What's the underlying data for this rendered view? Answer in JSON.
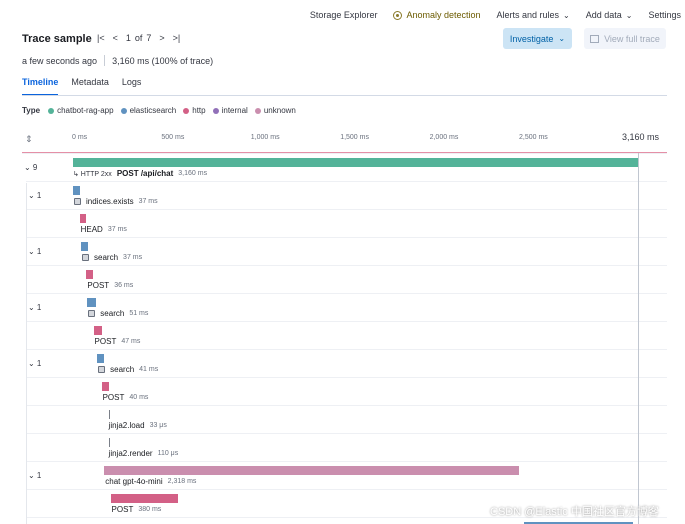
{
  "topnav": {
    "items": [
      {
        "label": "Storage Explorer"
      },
      {
        "label": "Anomaly detection"
      },
      {
        "label": "Alerts and rules"
      },
      {
        "label": "Add data"
      },
      {
        "label": "Settings"
      }
    ]
  },
  "header": {
    "title": "Trace sample",
    "pager_current": "1",
    "pager_of": "of",
    "pager_total": "7",
    "investigate_label": "Investigate",
    "view_full_trace_label": "View full trace"
  },
  "meta": {
    "time_ago": "a few seconds ago",
    "duration_summary": "3,160 ms  (100% of trace)"
  },
  "tabs": [
    {
      "label": "Timeline",
      "active": true
    },
    {
      "label": "Metadata"
    },
    {
      "label": "Logs"
    }
  ],
  "legend": {
    "title": "Type",
    "items": [
      {
        "label": "chatbot-rag-app",
        "color": "#54b399"
      },
      {
        "label": "elasticsearch",
        "color": "#6092c0"
      },
      {
        "label": "http",
        "color": "#d36086"
      },
      {
        "label": "internal",
        "color": "#9170b8"
      },
      {
        "label": "unknown",
        "color": "#ca8eae"
      }
    ]
  },
  "axis": {
    "ticks": [
      "0 ms",
      "500 ms",
      "1,000 ms",
      "1,500 ms",
      "2,000 ms",
      "2,500 ms"
    ],
    "end_label": "3,160 ms",
    "total_ms": 3160
  },
  "spans": [
    {
      "depth": 0,
      "toggle": "9",
      "start_ms": 0,
      "duration_ms": 3160,
      "color": "#54b399",
      "badge": "HTTP 2xx",
      "name": "POST /api/chat",
      "name_bold": true,
      "duration_label": "3,160 ms"
    },
    {
      "depth": 1,
      "toggle": "1",
      "start_ms": 0,
      "duration_ms": 37,
      "color": "#6092c0",
      "icon": "db",
      "name": "indices.exists",
      "duration_label": "37 ms"
    },
    {
      "depth": 2,
      "start_ms": 37,
      "duration_ms": 37,
      "color": "#d36086",
      "name": "HEAD",
      "duration_label": "37 ms"
    },
    {
      "depth": 1,
      "toggle": "1",
      "start_ms": 45,
      "duration_ms": 37,
      "color": "#6092c0",
      "icon": "db",
      "name": "search",
      "duration_label": "37 ms"
    },
    {
      "depth": 2,
      "start_ms": 75,
      "duration_ms": 36,
      "color": "#d36086",
      "name": "POST",
      "duration_label": "36 ms"
    },
    {
      "depth": 1,
      "toggle": "1",
      "start_ms": 80,
      "duration_ms": 51,
      "color": "#6092c0",
      "icon": "db",
      "name": "search",
      "duration_label": "51 ms"
    },
    {
      "depth": 2,
      "start_ms": 115,
      "duration_ms": 47,
      "color": "#d36086",
      "name": "POST",
      "duration_label": "47 ms"
    },
    {
      "depth": 1,
      "toggle": "1",
      "start_ms": 135,
      "duration_ms": 41,
      "color": "#6092c0",
      "icon": "db",
      "name": "search",
      "duration_label": "41 ms"
    },
    {
      "depth": 2,
      "start_ms": 160,
      "duration_ms": 40,
      "color": "#d36086",
      "name": "POST",
      "duration_label": "40 ms"
    },
    {
      "depth": 1,
      "start_ms": 210,
      "duration_ms": 0.033,
      "color": "#7a7f88",
      "tick": true,
      "name": "jinja2.load",
      "duration_label": "33 μs"
    },
    {
      "depth": 1,
      "start_ms": 210,
      "duration_ms": 0.11,
      "color": "#7a7f88",
      "tick": true,
      "name": "jinja2.render",
      "duration_label": "110 μs"
    },
    {
      "depth": 1,
      "toggle": "1",
      "start_ms": 175,
      "duration_ms": 2318,
      "color": "#ca8eae",
      "name": "chat gpt-4o-mini",
      "duration_label": "2,318 ms"
    },
    {
      "depth": 2,
      "start_ms": 210,
      "duration_ms": 380,
      "color": "#d36086",
      "name": "POST",
      "duration_label": "380 ms"
    },
    {
      "depth": 2,
      "start_ms": 2520,
      "duration_ms": 610,
      "color": "#6092c0",
      "partial": true
    }
  ],
  "watermark": "CSDN @Elastic 中国社区官方博客"
}
